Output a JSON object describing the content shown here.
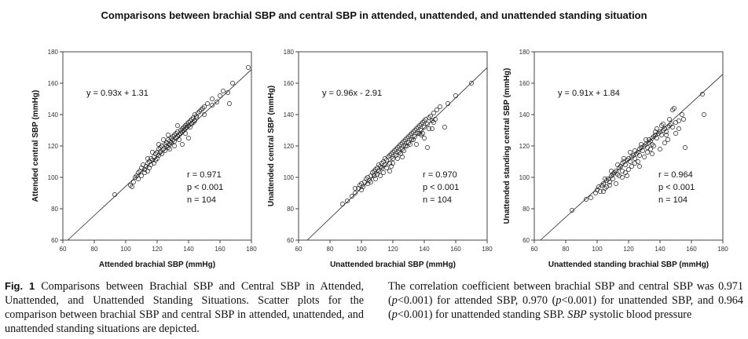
{
  "figure_title": "Comparisons between brachial SBP and central SBP in attended, unattended, and unattended standing situation",
  "caption": {
    "label": "Fig. 1",
    "left_text": "Comparisons between Brachial SBP and Central SBP in Attended, Unattended, and Unattended Standing Situations. Scatter plots for the comparison between brachial SBP and central SBP in attended, unattended, and unattended standing situations are depicted.",
    "right_text": {
      "p1": "The correlation coefficient between brachial SBP and central SBP was 0.971 (",
      "p": "p",
      "p2": "<0.001) for attended SBP, 0.970 (",
      "p3": "<0.001) for unattended SBP, and 0.964 (",
      "p4": "<0.001) for unattended standing SBP. ",
      "abbr": "SBP",
      "p5": " systolic blood pressure"
    }
  },
  "chart_data": [
    {
      "type": "scatter",
      "xlabel": "Attended brachial SBP (mmHg)",
      "ylabel": "Attended central SBP (mmHg)",
      "xlim": [
        60,
        180
      ],
      "ylim": [
        60,
        180
      ],
      "xticks": [
        60,
        80,
        100,
        120,
        140,
        160,
        180
      ],
      "yticks": [
        60,
        80,
        100,
        120,
        140,
        160,
        180
      ],
      "equation": "y = 0.93x + 1.31",
      "fit": {
        "slope": 0.93,
        "intercept": 1.31
      },
      "stats": [
        "r = 0.971",
        "p < 0.001",
        "n = 104"
      ],
      "points": [
        [
          93,
          89
        ],
        [
          103,
          95
        ],
        [
          104,
          94
        ],
        [
          105,
          97
        ],
        [
          106,
          100
        ],
        [
          107,
          101
        ],
        [
          108,
          103
        ],
        [
          108,
          99
        ],
        [
          109,
          104
        ],
        [
          110,
          106
        ],
        [
          110,
          101
        ],
        [
          111,
          108
        ],
        [
          112,
          105
        ],
        [
          112,
          103
        ],
        [
          113,
          107
        ],
        [
          114,
          109
        ],
        [
          114,
          104
        ],
        [
          115,
          110
        ],
        [
          115,
          106
        ],
        [
          116,
          108
        ],
        [
          116,
          112
        ],
        [
          117,
          111
        ],
        [
          118,
          113
        ],
        [
          118,
          109
        ],
        [
          119,
          115
        ],
        [
          120,
          116
        ],
        [
          120,
          112
        ],
        [
          121,
          114
        ],
        [
          121,
          118
        ],
        [
          122,
          119
        ],
        [
          122,
          116
        ],
        [
          123,
          115
        ],
        [
          123,
          120
        ],
        [
          124,
          118
        ],
        [
          125,
          121
        ],
        [
          125,
          117
        ],
        [
          126,
          122
        ],
        [
          126,
          120
        ],
        [
          127,
          124
        ],
        [
          127,
          119
        ],
        [
          128,
          123
        ],
        [
          128,
          121
        ],
        [
          129,
          125
        ],
        [
          129,
          122
        ],
        [
          130,
          126
        ],
        [
          130,
          124
        ],
        [
          131,
          127
        ],
        [
          131,
          123
        ],
        [
          132,
          128
        ],
        [
          132,
          125
        ],
        [
          133,
          126
        ],
        [
          133,
          129
        ],
        [
          134,
          127
        ],
        [
          134,
          124
        ],
        [
          135,
          130
        ],
        [
          135,
          128
        ],
        [
          136,
          129
        ],
        [
          136,
          131
        ],
        [
          137,
          132
        ],
        [
          137,
          130
        ],
        [
          138,
          133
        ],
        [
          138,
          131
        ],
        [
          139,
          134
        ],
        [
          139,
          132
        ],
        [
          140,
          133
        ],
        [
          140,
          135
        ],
        [
          141,
          136
        ],
        [
          141,
          132
        ],
        [
          142,
          134
        ],
        [
          142,
          137
        ],
        [
          143,
          138
        ],
        [
          143,
          135
        ],
        [
          144,
          140
        ],
        [
          144,
          136
        ],
        [
          145,
          139
        ],
        [
          146,
          141
        ],
        [
          147,
          142
        ],
        [
          148,
          143
        ],
        [
          149,
          144
        ],
        [
          150,
          145
        ],
        [
          152,
          147
        ],
        [
          155,
          150
        ],
        [
          158,
          148
        ],
        [
          160,
          152
        ],
        [
          162,
          155
        ],
        [
          165,
          154
        ],
        [
          166,
          147
        ],
        [
          168,
          160
        ],
        [
          178,
          170
        ],
        [
          128,
          118
        ],
        [
          131,
          120
        ],
        [
          136,
          121
        ],
        [
          140,
          125
        ],
        [
          119,
          111
        ],
        [
          114,
          112
        ],
        [
          117,
          116
        ],
        [
          121,
          121
        ],
        [
          124,
          124
        ],
        [
          127,
          127
        ],
        [
          133,
          133
        ],
        [
          138,
          128
        ],
        [
          145,
          138
        ],
        [
          150,
          140
        ],
        [
          155,
          146
        ]
      ]
    },
    {
      "type": "scatter",
      "xlabel": "Unattended brachial SBP (mmHg)",
      "ylabel": "Unattended central SBP (mmHg)",
      "xlim": [
        60,
        180
      ],
      "ylim": [
        60,
        180
      ],
      "xticks": [
        60,
        80,
        100,
        120,
        140,
        160,
        180
      ],
      "yticks": [
        60,
        80,
        100,
        120,
        140,
        160,
        180
      ],
      "equation": "y = 0.96x - 2.91",
      "fit": {
        "slope": 0.96,
        "intercept": -2.91
      },
      "stats": [
        "r = 0.970",
        "p < 0.001",
        "n = 104"
      ],
      "points": [
        [
          88,
          83
        ],
        [
          91,
          85
        ],
        [
          94,
          88
        ],
        [
          96,
          90
        ],
        [
          98,
          93
        ],
        [
          99,
          95
        ],
        [
          100,
          96
        ],
        [
          101,
          94
        ],
        [
          102,
          97
        ],
        [
          103,
          99
        ],
        [
          104,
          100
        ],
        [
          105,
          98
        ],
        [
          106,
          101
        ],
        [
          107,
          103
        ],
        [
          108,
          104
        ],
        [
          108,
          101
        ],
        [
          109,
          105
        ],
        [
          110,
          106
        ],
        [
          111,
          104
        ],
        [
          111,
          108
        ],
        [
          112,
          107
        ],
        [
          113,
          106
        ],
        [
          113,
          109
        ],
        [
          114,
          110
        ],
        [
          115,
          108
        ],
        [
          115,
          112
        ],
        [
          116,
          111
        ],
        [
          117,
          113
        ],
        [
          118,
          109
        ],
        [
          118,
          114
        ],
        [
          119,
          115
        ],
        [
          120,
          112
        ],
        [
          120,
          116
        ],
        [
          121,
          117
        ],
        [
          122,
          114
        ],
        [
          122,
          118
        ],
        [
          123,
          119
        ],
        [
          124,
          116
        ],
        [
          124,
          120
        ],
        [
          125,
          121
        ],
        [
          126,
          118
        ],
        [
          126,
          122
        ],
        [
          127,
          123
        ],
        [
          128,
          120
        ],
        [
          128,
          124
        ],
        [
          129,
          125
        ],
        [
          130,
          122
        ],
        [
          130,
          126
        ],
        [
          131,
          127
        ],
        [
          132,
          124
        ],
        [
          132,
          128
        ],
        [
          133,
          129
        ],
        [
          134,
          126
        ],
        [
          134,
          130
        ],
        [
          135,
          131
        ],
        [
          136,
          128
        ],
        [
          136,
          132
        ],
        [
          137,
          133
        ],
        [
          138,
          130
        ],
        [
          138,
          134
        ],
        [
          139,
          135
        ],
        [
          140,
          132
        ],
        [
          140,
          136
        ],
        [
          141,
          137
        ],
        [
          142,
          134
        ],
        [
          143,
          138
        ],
        [
          144,
          139
        ],
        [
          145,
          136
        ],
        [
          146,
          141
        ],
        [
          148,
          143
        ],
        [
          150,
          145
        ],
        [
          153,
          132
        ],
        [
          155,
          147
        ],
        [
          160,
          152
        ],
        [
          170,
          160
        ],
        [
          142,
          119
        ],
        [
          140,
          125
        ],
        [
          135,
          121
        ],
        [
          118,
          104
        ],
        [
          112,
          101
        ],
        [
          104,
          96
        ],
        [
          110,
          102
        ],
        [
          116,
          106
        ],
        [
          125,
          115
        ],
        [
          129,
          120
        ],
        [
          133,
          124
        ],
        [
          137,
          128
        ],
        [
          131,
          121
        ],
        [
          106,
          97
        ],
        [
          100,
          92
        ],
        [
          96,
          93
        ],
        [
          120,
          109
        ],
        [
          126,
          113
        ],
        [
          114,
          103
        ],
        [
          138,
          127
        ],
        [
          145,
          131
        ],
        [
          127,
          117
        ],
        [
          123,
          112
        ],
        [
          119,
          107
        ],
        [
          109,
          99
        ],
        [
          139,
          128
        ],
        [
          146,
          135
        ],
        [
          143,
          131
        ],
        [
          147,
          137
        ]
      ]
    },
    {
      "type": "scatter",
      "xlabel": "Unattended standing brachial SBP (mmHg)",
      "ylabel": "Unattended standing central SBP (mmHg)",
      "xlim": [
        60,
        180
      ],
      "ylim": [
        60,
        180
      ],
      "xticks": [
        60,
        80,
        100,
        120,
        140,
        160,
        180
      ],
      "yticks": [
        60,
        80,
        100,
        120,
        140,
        160,
        180
      ],
      "equation": "y = 0.91x + 1.84",
      "fit": {
        "slope": 0.91,
        "intercept": 1.84
      },
      "stats": [
        "r = 0.964",
        "p < 0.001",
        "n = 104"
      ],
      "points": [
        [
          84,
          79
        ],
        [
          93,
          86
        ],
        [
          96,
          87
        ],
        [
          99,
          90
        ],
        [
          100,
          92
        ],
        [
          101,
          94
        ],
        [
          102,
          91
        ],
        [
          103,
          95
        ],
        [
          104,
          96
        ],
        [
          105,
          93
        ],
        [
          106,
          98
        ],
        [
          107,
          99
        ],
        [
          108,
          97
        ],
        [
          109,
          101
        ],
        [
          110,
          102
        ],
        [
          110,
          99
        ],
        [
          111,
          103
        ],
        [
          112,
          104
        ],
        [
          113,
          102
        ],
        [
          114,
          106
        ],
        [
          115,
          107
        ],
        [
          116,
          104
        ],
        [
          116,
          109
        ],
        [
          117,
          110
        ],
        [
          118,
          108
        ],
        [
          119,
          111
        ],
        [
          120,
          112
        ],
        [
          121,
          110
        ],
        [
          122,
          113
        ],
        [
          123,
          114
        ],
        [
          124,
          112
        ],
        [
          125,
          115
        ],
        [
          126,
          116
        ],
        [
          127,
          114
        ],
        [
          127,
          118
        ],
        [
          128,
          119
        ],
        [
          129,
          117
        ],
        [
          130,
          120
        ],
        [
          131,
          121
        ],
        [
          132,
          119
        ],
        [
          133,
          122
        ],
        [
          133,
          124
        ],
        [
          134,
          123
        ],
        [
          135,
          125
        ],
        [
          135,
          121
        ],
        [
          136,
          126
        ],
        [
          137,
          127
        ],
        [
          138,
          125
        ],
        [
          139,
          128
        ],
        [
          140,
          129
        ],
        [
          141,
          127
        ],
        [
          142,
          130
        ],
        [
          143,
          131
        ],
        [
          144,
          129
        ],
        [
          145,
          132
        ],
        [
          146,
          133
        ],
        [
          147,
          134
        ],
        [
          148,
          143
        ],
        [
          149,
          144
        ],
        [
          150,
          135
        ],
        [
          152,
          136
        ],
        [
          155,
          137
        ],
        [
          167,
          153
        ],
        [
          168,
          140
        ],
        [
          156,
          119
        ],
        [
          140,
          118
        ],
        [
          130,
          113
        ],
        [
          120,
          105
        ],
        [
          112,
          96
        ],
        [
          106,
          94
        ],
        [
          116,
          100
        ],
        [
          124,
          109
        ],
        [
          132,
          116
        ],
        [
          136,
          120
        ],
        [
          145,
          124
        ],
        [
          150,
          128
        ],
        [
          124,
          117
        ],
        [
          128,
          121
        ],
        [
          138,
          131
        ],
        [
          142,
          134
        ],
        [
          104,
          91
        ],
        [
          108,
          95
        ],
        [
          114,
          101
        ],
        [
          118,
          103
        ],
        [
          122,
          107
        ],
        [
          126,
          110
        ],
        [
          134,
          118
        ],
        [
          144,
          127
        ],
        [
          148,
          132
        ],
        [
          152,
          131
        ],
        [
          121,
          116
        ],
        [
          117,
          112
        ],
        [
          113,
          108
        ],
        [
          109,
          104
        ],
        [
          105,
          99
        ],
        [
          131,
          124
        ],
        [
          137,
          129
        ],
        [
          141,
          133
        ],
        [
          146,
          137
        ],
        [
          154,
          140
        ],
        [
          119,
          101
        ],
        [
          127,
          107
        ],
        [
          135,
          115
        ],
        [
          143,
          122
        ]
      ]
    }
  ]
}
